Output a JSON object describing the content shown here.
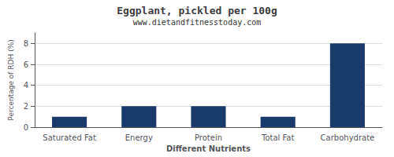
{
  "chart_data": {
    "type": "bar",
    "title": "Eggplant, pickled per 100g",
    "subtitle": "www.dietandfitnesstoday.com",
    "categories": [
      "Saturated Fat",
      "Energy",
      "Protein",
      "Total Fat",
      "Carbohydrate"
    ],
    "values": [
      1,
      2,
      2,
      1,
      8
    ],
    "color": "#1a3a6b",
    "xlabel": "Different Nutrients",
    "ylabel": "Percentage of RDH (%)",
    "ylim": [
      0,
      9
    ],
    "yticks": [
      0,
      2,
      4,
      6,
      8
    ],
    "grid": true
  }
}
